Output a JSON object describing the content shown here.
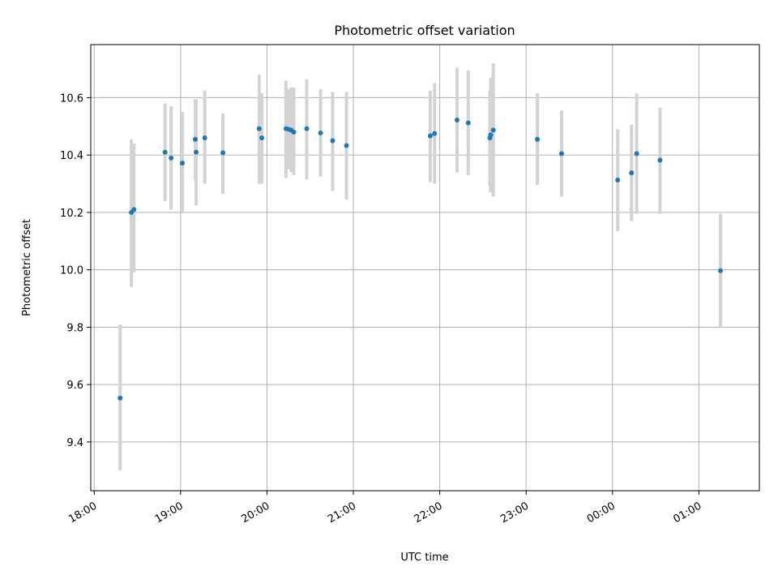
{
  "chart_data": {
    "type": "scatter",
    "title": "Photometric offset variation",
    "xlabel": "UTC time",
    "ylabel": "Photometric offset",
    "x_format": "HH:MM (UTC), x values are hours after 18:00 on the first night",
    "xlim": [
      -0.04,
      7.7
    ],
    "ylim": [
      9.23,
      10.785
    ],
    "xticks": [
      {
        "value": 0,
        "label": "18:00"
      },
      {
        "value": 1,
        "label": "19:00"
      },
      {
        "value": 2,
        "label": "20:00"
      },
      {
        "value": 3,
        "label": "21:00"
      },
      {
        "value": 4,
        "label": "22:00"
      },
      {
        "value": 5,
        "label": "23:00"
      },
      {
        "value": 6,
        "label": "00:00"
      },
      {
        "value": 7,
        "label": "01:00"
      }
    ],
    "yticks": [
      {
        "value": 9.4,
        "label": "9.4"
      },
      {
        "value": 9.6,
        "label": "9.6"
      },
      {
        "value": 9.8,
        "label": "9.8"
      },
      {
        "value": 10.0,
        "label": "10.0"
      },
      {
        "value": 10.2,
        "label": "10.2"
      },
      {
        "value": 10.4,
        "label": "10.4"
      },
      {
        "value": 10.6,
        "label": "10.6"
      }
    ],
    "grid": true,
    "legend": "none",
    "colors": {
      "point": "#1f77b4",
      "errorbar": "#d3d3d3",
      "grid": "#b0b0b0"
    },
    "points": [
      {
        "x": 0.3,
        "y": 9.553,
        "lo": 9.3,
        "hi": 9.81
      },
      {
        "x": 0.43,
        "y": 10.2,
        "lo": 9.94,
        "hi": 10.455
      },
      {
        "x": 0.46,
        "y": 10.21,
        "lo": 9.99,
        "hi": 10.44
      },
      {
        "x": 0.82,
        "y": 10.41,
        "lo": 10.24,
        "hi": 10.58
      },
      {
        "x": 0.89,
        "y": 10.39,
        "lo": 10.21,
        "hi": 10.57
      },
      {
        "x": 1.02,
        "y": 10.372,
        "lo": 10.2,
        "hi": 10.55
      },
      {
        "x": 1.17,
        "y": 10.455,
        "lo": 10.31,
        "hi": 10.595
      },
      {
        "x": 1.18,
        "y": 10.41,
        "lo": 10.225,
        "hi": 10.595
      },
      {
        "x": 1.28,
        "y": 10.46,
        "lo": 10.3,
        "hi": 10.625
      },
      {
        "x": 1.49,
        "y": 10.408,
        "lo": 10.265,
        "hi": 10.545
      },
      {
        "x": 1.91,
        "y": 10.492,
        "lo": 10.3,
        "hi": 10.68
      },
      {
        "x": 1.94,
        "y": 10.46,
        "lo": 10.3,
        "hi": 10.615
      },
      {
        "x": 2.22,
        "y": 10.492,
        "lo": 10.32,
        "hi": 10.66
      },
      {
        "x": 2.25,
        "y": 10.49,
        "lo": 10.35,
        "hi": 10.63
      },
      {
        "x": 2.28,
        "y": 10.487,
        "lo": 10.34,
        "hi": 10.635
      },
      {
        "x": 2.31,
        "y": 10.48,
        "lo": 10.33,
        "hi": 10.635
      },
      {
        "x": 2.46,
        "y": 10.492,
        "lo": 10.315,
        "hi": 10.665
      },
      {
        "x": 2.62,
        "y": 10.477,
        "lo": 10.325,
        "hi": 10.63
      },
      {
        "x": 2.76,
        "y": 10.45,
        "lo": 10.275,
        "hi": 10.62
      },
      {
        "x": 2.92,
        "y": 10.433,
        "lo": 10.245,
        "hi": 10.62
      },
      {
        "x": 3.89,
        "y": 10.467,
        "lo": 10.305,
        "hi": 10.625
      },
      {
        "x": 3.94,
        "y": 10.475,
        "lo": 10.3,
        "hi": 10.65
      },
      {
        "x": 4.2,
        "y": 10.522,
        "lo": 10.34,
        "hi": 10.705
      },
      {
        "x": 4.33,
        "y": 10.512,
        "lo": 10.33,
        "hi": 10.695
      },
      {
        "x": 4.58,
        "y": 10.46,
        "lo": 10.29,
        "hi": 10.625
      },
      {
        "x": 4.59,
        "y": 10.47,
        "lo": 10.27,
        "hi": 10.67
      },
      {
        "x": 4.62,
        "y": 10.487,
        "lo": 10.255,
        "hi": 10.72
      },
      {
        "x": 5.13,
        "y": 10.455,
        "lo": 10.295,
        "hi": 10.615
      },
      {
        "x": 5.41,
        "y": 10.405,
        "lo": 10.255,
        "hi": 10.555
      },
      {
        "x": 6.06,
        "y": 10.313,
        "lo": 10.135,
        "hi": 10.49
      },
      {
        "x": 6.22,
        "y": 10.338,
        "lo": 10.17,
        "hi": 10.505
      },
      {
        "x": 6.28,
        "y": 10.405,
        "lo": 10.195,
        "hi": 10.615
      },
      {
        "x": 6.55,
        "y": 10.382,
        "lo": 10.195,
        "hi": 10.565
      },
      {
        "x": 7.25,
        "y": 9.997,
        "lo": 9.8,
        "hi": 10.195
      }
    ]
  }
}
